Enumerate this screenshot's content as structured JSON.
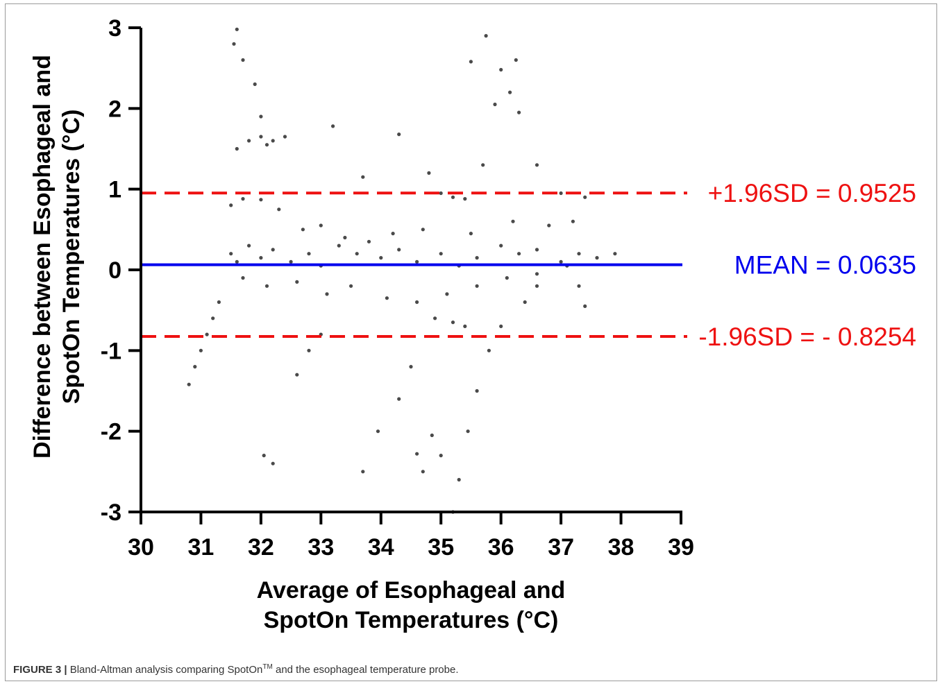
{
  "caption": {
    "figure_label": "FIGURE 3 |",
    "text_before": " Bland-Altman analysis comparing SpotOn",
    "superscript": "TM",
    "text_after": " and the esophageal temperature probe."
  },
  "chart_data": {
    "type": "scatter",
    "title": "",
    "xlabel": [
      "Average of Esophageal and",
      "SpotOn Temperatures (°C)"
    ],
    "ylabel": [
      "Difference between Esophageal and",
      "SpotOn Temperatures (°C)"
    ],
    "xlim": [
      30,
      39
    ],
    "ylim": [
      -3,
      3
    ],
    "x_ticks": [
      "30",
      "31",
      "32",
      "33",
      "34",
      "35",
      "36",
      "37",
      "38",
      "39"
    ],
    "y_ticks": [
      "-3",
      "-2",
      "-1",
      "0",
      "1",
      "2",
      "3"
    ],
    "grid": false,
    "colors": {
      "points": "#4a4a4a",
      "mean_line": "#0000ee",
      "limit_lines": "#ee1111",
      "axis": "#000000"
    },
    "reference_lines": [
      {
        "label": "+1.96SD = 0.9525",
        "value": 0.9525,
        "style": "dashed",
        "color": "#ee1111"
      },
      {
        "label": "MEAN = 0.0635",
        "value": 0.0635,
        "style": "solid",
        "color": "#0000ee"
      },
      {
        "label": "-1.96SD = - 0.8254",
        "value": -0.8254,
        "style": "dashed",
        "color": "#ee1111"
      }
    ],
    "series": [
      {
        "points": [
          [
            31.5,
            0.2
          ],
          [
            31.6,
            0.1
          ],
          [
            31.8,
            0.3
          ],
          [
            32.0,
            0.15
          ],
          [
            32.2,
            0.25
          ],
          [
            32.5,
            0.1
          ],
          [
            32.8,
            0.2
          ],
          [
            33.0,
            0.05
          ],
          [
            33.3,
            0.3
          ],
          [
            33.6,
            0.2
          ],
          [
            34.0,
            0.15
          ],
          [
            34.3,
            0.25
          ],
          [
            34.6,
            0.1
          ],
          [
            35.0,
            0.2
          ],
          [
            35.3,
            0.05
          ],
          [
            35.6,
            0.15
          ],
          [
            36.0,
            0.3
          ],
          [
            36.3,
            0.2
          ],
          [
            36.6,
            0.25
          ],
          [
            37.0,
            0.1
          ],
          [
            37.3,
            0.2
          ],
          [
            37.6,
            0.15
          ],
          [
            37.9,
            0.2
          ],
          [
            31.7,
            -0.1
          ],
          [
            32.1,
            -0.2
          ],
          [
            32.6,
            -0.15
          ],
          [
            33.1,
            -0.3
          ],
          [
            33.5,
            -0.2
          ],
          [
            34.1,
            -0.35
          ],
          [
            34.6,
            -0.4
          ],
          [
            35.1,
            -0.3
          ],
          [
            35.6,
            -0.2
          ],
          [
            36.1,
            -0.1
          ],
          [
            36.6,
            -0.05
          ],
          [
            37.1,
            0.05
          ],
          [
            31.6,
            1.5
          ],
          [
            31.8,
            1.6
          ],
          [
            32.0,
            1.65
          ],
          [
            32.1,
            1.55
          ],
          [
            32.2,
            1.6
          ],
          [
            31.55,
            2.8
          ],
          [
            31.6,
            2.98
          ],
          [
            31.7,
            2.6
          ],
          [
            31.9,
            2.3
          ],
          [
            32.0,
            1.9
          ],
          [
            32.4,
            1.65
          ],
          [
            33.2,
            1.78
          ],
          [
            34.3,
            1.68
          ],
          [
            35.5,
            2.58
          ],
          [
            35.75,
            2.9
          ],
          [
            36.0,
            2.48
          ],
          [
            36.15,
            2.2
          ],
          [
            36.25,
            2.6
          ],
          [
            36.3,
            1.95
          ],
          [
            35.9,
            2.05
          ],
          [
            31.5,
            0.8
          ],
          [
            31.7,
            0.88
          ],
          [
            32.0,
            0.87
          ],
          [
            32.3,
            0.75
          ],
          [
            35.0,
            0.95
          ],
          [
            35.2,
            0.9
          ],
          [
            35.4,
            0.88
          ],
          [
            34.8,
            1.2
          ],
          [
            35.7,
            1.3
          ],
          [
            36.6,
            1.3
          ],
          [
            37.0,
            0.95
          ],
          [
            37.4,
            0.9
          ],
          [
            33.7,
            1.15
          ],
          [
            30.8,
            -1.42
          ],
          [
            30.9,
            -1.2
          ],
          [
            31.0,
            -1.0
          ],
          [
            31.1,
            -0.8
          ],
          [
            31.2,
            -0.6
          ],
          [
            31.3,
            -0.4
          ],
          [
            32.2,
            -2.4
          ],
          [
            32.05,
            -2.3
          ],
          [
            33.7,
            -2.5
          ],
          [
            34.6,
            -2.28
          ],
          [
            34.85,
            -2.05
          ],
          [
            35.0,
            -2.3
          ],
          [
            35.2,
            -3.0
          ],
          [
            35.3,
            -2.6
          ],
          [
            35.45,
            -2.0
          ],
          [
            35.6,
            -1.5
          ],
          [
            35.8,
            -1.0
          ],
          [
            36.0,
            -0.7
          ],
          [
            34.7,
            -2.5
          ],
          [
            34.5,
            -1.2
          ],
          [
            34.3,
            -1.6
          ],
          [
            33.95,
            -2.0
          ],
          [
            32.6,
            -1.3
          ],
          [
            32.8,
            -1.0
          ],
          [
            33.0,
            -0.8
          ],
          [
            36.4,
            -0.4
          ],
          [
            36.6,
            -0.2
          ],
          [
            37.4,
            -0.45
          ],
          [
            37.3,
            -0.2
          ],
          [
            36.2,
            0.6
          ],
          [
            36.8,
            0.55
          ],
          [
            37.2,
            0.6
          ],
          [
            33.4,
            0.4
          ],
          [
            33.8,
            0.35
          ],
          [
            34.2,
            0.45
          ],
          [
            34.7,
            0.5
          ],
          [
            35.5,
            0.45
          ],
          [
            32.7,
            0.5
          ],
          [
            33.0,
            0.55
          ],
          [
            34.9,
            -0.6
          ],
          [
            35.2,
            -0.65
          ],
          [
            35.4,
            -0.7
          ]
        ]
      }
    ]
  }
}
